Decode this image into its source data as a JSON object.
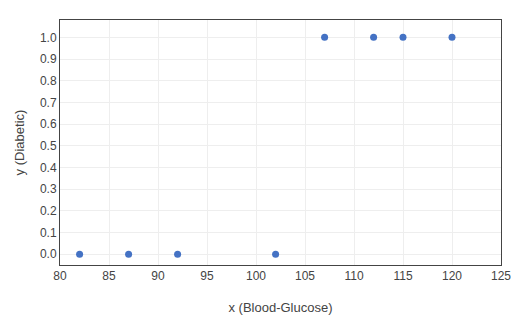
{
  "chart_data": {
    "type": "scatter",
    "x": [
      82,
      87,
      92,
      102,
      107,
      112,
      115,
      120
    ],
    "values": [
      0,
      0,
      0,
      0,
      1,
      1,
      1,
      1
    ],
    "xlabel": "x (Blood-Glucose)",
    "ylabel": "y (Diabetic)",
    "xlim": [
      80,
      125
    ],
    "ylim": [
      -0.05,
      1.08
    ],
    "xticks": [
      80,
      85,
      90,
      95,
      100,
      105,
      110,
      115,
      120,
      125
    ],
    "yticks": [
      {
        "value": 0,
        "label": "0.0"
      },
      0.1,
      0.2,
      0.3,
      0.4,
      0.5,
      0.6,
      0.7,
      0.8,
      0.9,
      {
        "value": 1,
        "label": "1.0"
      }
    ],
    "color": "#4472c4",
    "grid": true
  }
}
